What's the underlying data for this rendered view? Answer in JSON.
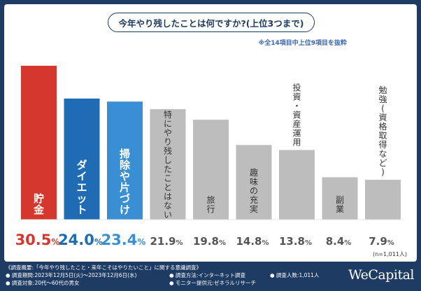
{
  "title": "今年やり残したことは何ですか?(上位3つまで)",
  "subtitle": "※全14項目中上位9項目を抜粋",
  "n_label": "(n=1,011人)",
  "footer": {
    "overview": "《調査概要:「今年やり残したこと・来年こそはやりたいこと」に関する意識調査》",
    "period": "● 調査期間:2023年12月5日(火)〜2023年12月6日(水)",
    "method": "● 調査方法:インターネット調査",
    "count": "● 調査人数:1,011人",
    "target": "● 調査対象:20代〜60代の男女",
    "monitor": "● モニター提供元:ゼネラルリサーチ"
  },
  "logo": "WeCapital",
  "colors": {
    "red": "#d6372c",
    "blue": "#1f6cb5",
    "lightblue": "#3a8fd4",
    "gray": "#bdbdbd",
    "navy": "#1d3b63"
  },
  "chart_data": {
    "type": "bar",
    "unit": "%",
    "categories": [
      "貯金",
      "ダイエット",
      "掃除や片づけ",
      "特にやり残したことはない",
      "旅行",
      "趣味の充実",
      "投資・資産運用",
      "副業",
      "勉強(資格取得など)"
    ],
    "values": [
      30.5,
      24.0,
      23.4,
      21.9,
      19.8,
      14.8,
      13.8,
      8.4,
      7.9
    ],
    "value_labels": [
      "30.5%",
      "24.0%",
      "23.4%",
      "21.9%",
      "19.8%",
      "14.8%",
      "13.8%",
      "8.4%",
      "7.9%"
    ],
    "bar_colors": [
      "#d6372c",
      "#1f6cb5",
      "#3a8fd4",
      "#bdbdbd",
      "#bdbdbd",
      "#bdbdbd",
      "#bdbdbd",
      "#bdbdbd",
      "#bdbdbd"
    ],
    "label_colors": [
      "#d6372c",
      "#1f6cb5",
      "#3a8fd4",
      "#555555",
      "#555555",
      "#555555",
      "#555555",
      "#555555",
      "#555555"
    ],
    "ylim": [
      0,
      30.5
    ]
  }
}
